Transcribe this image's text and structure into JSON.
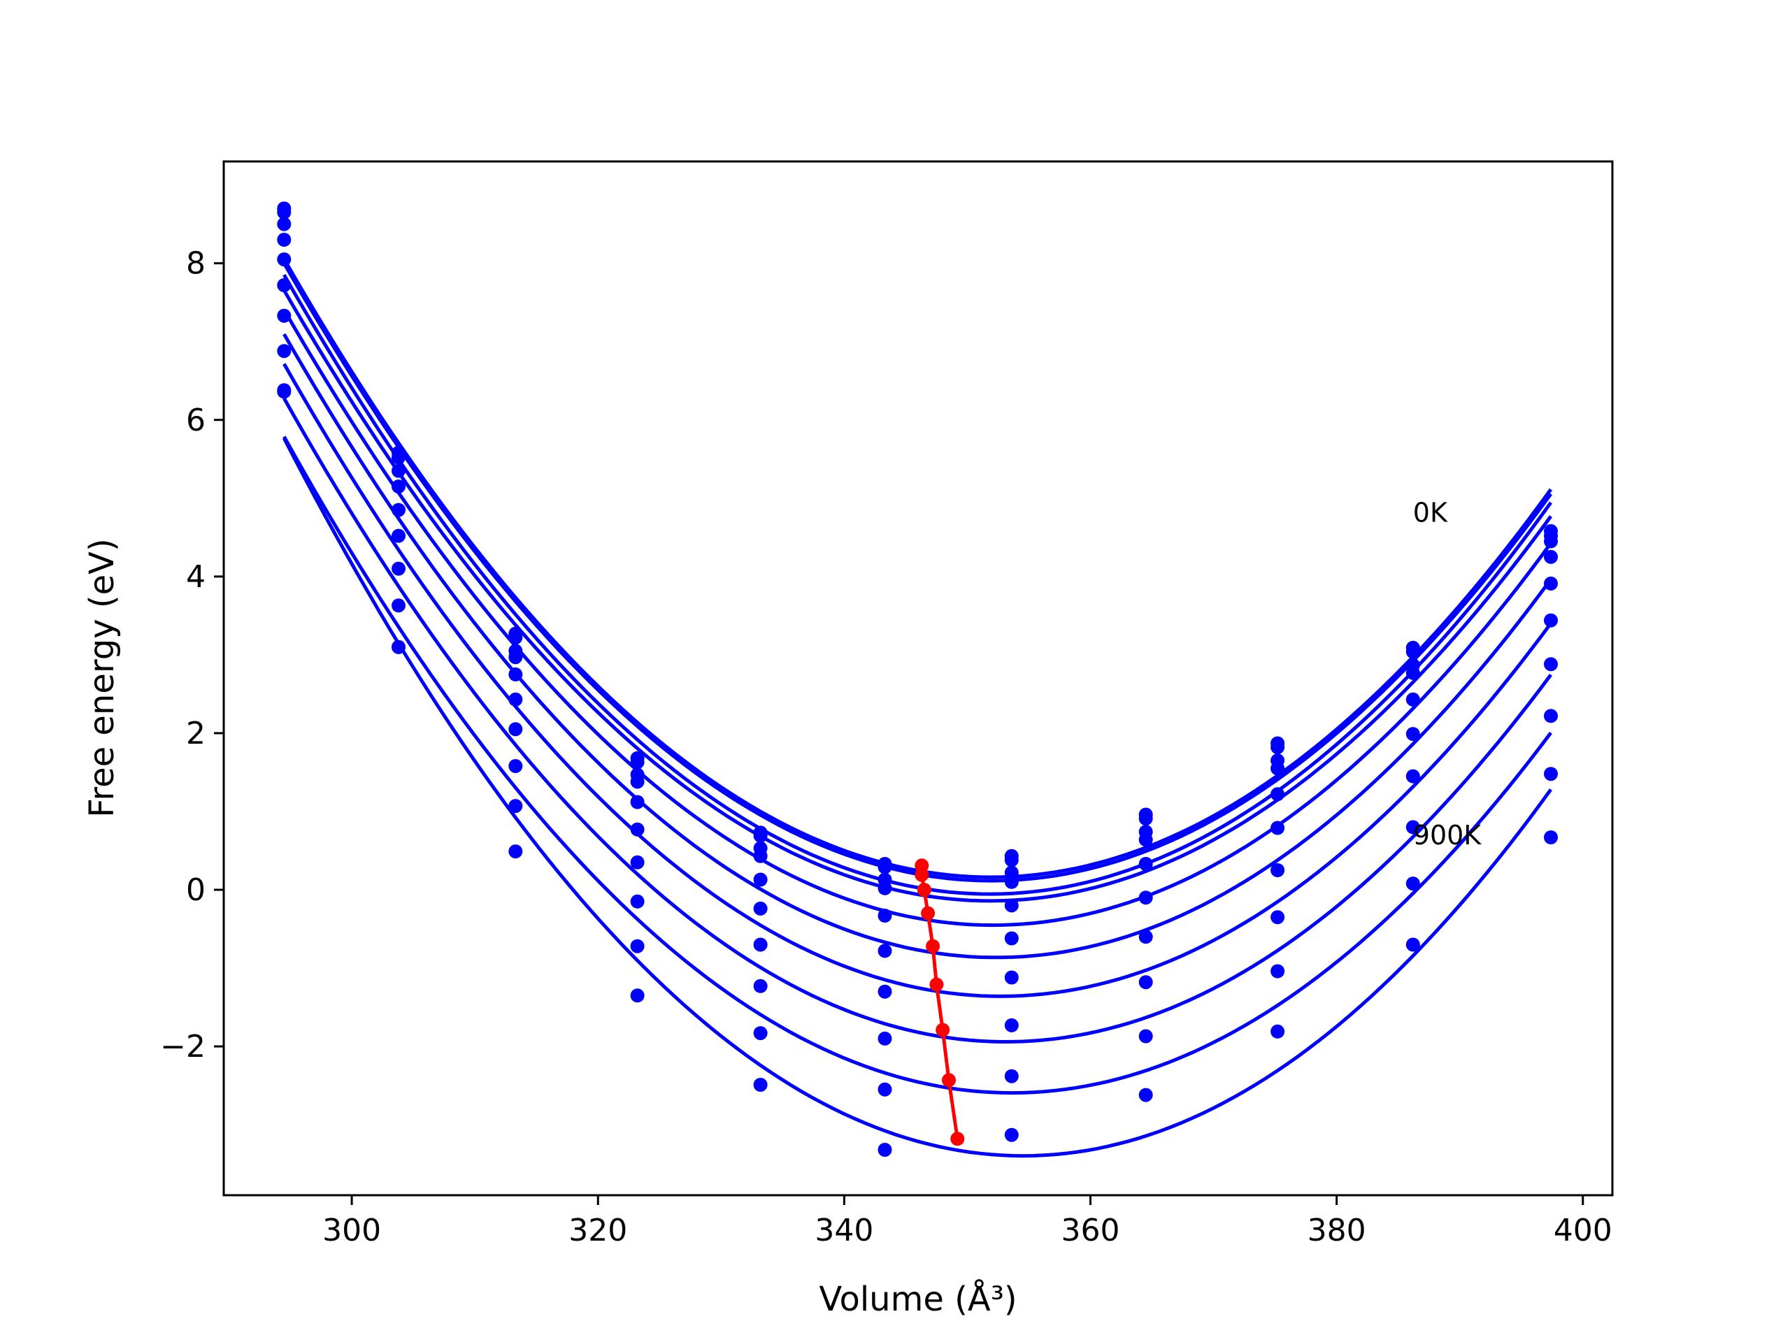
{
  "chart_data": {
    "type": "line",
    "xlabel": "Volume (Å³)",
    "ylabel": "Free energy (eV)",
    "xlim": [
      289.6,
      402.4
    ],
    "ylim": [
      -3.9,
      9.3
    ],
    "xticks": [
      300,
      320,
      340,
      360,
      380,
      400
    ],
    "yticks": [
      8,
      6,
      4,
      2,
      0,
      -2
    ],
    "ytick_labels": [
      "8",
      "6",
      "4",
      "2",
      "0",
      "−2"
    ],
    "grid": false,
    "colors": {
      "curves": "#0000ff",
      "minima": "#ff0000"
    },
    "x": [
      294.5,
      303.8,
      313.3,
      323.2,
      333.2,
      343.3,
      353.6,
      364.5,
      375.2,
      386.2,
      397.4
    ],
    "series": [
      {
        "values": [
          8.7,
          5.58,
          3.27,
          1.68,
          0.73,
          0.33,
          0.43,
          0.96,
          1.87,
          3.09,
          4.58
        ]
      },
      {
        "values": [
          8.65,
          5.52,
          3.22,
          1.63,
          0.69,
          0.29,
          0.38,
          0.91,
          1.82,
          3.04,
          4.52
        ]
      },
      {
        "values": [
          8.5,
          5.35,
          3.05,
          1.47,
          0.53,
          0.13,
          0.22,
          0.74,
          1.65,
          2.87,
          4.45
        ]
      },
      {
        "values": [
          8.3,
          5.15,
          2.97,
          1.38,
          0.43,
          0.02,
          0.1,
          0.64,
          1.55,
          2.77,
          4.25
        ]
      },
      {
        "values": [
          8.05,
          4.85,
          2.75,
          1.12,
          0.13,
          -0.33,
          -0.2,
          0.33,
          1.22,
          2.43,
          3.91
        ]
      },
      {
        "values": [
          7.72,
          4.52,
          2.43,
          0.77,
          -0.24,
          -0.78,
          -0.62,
          -0.1,
          0.79,
          1.99,
          3.44
        ]
      },
      {
        "values": [
          7.33,
          4.1,
          2.05,
          0.35,
          -0.7,
          -1.3,
          -1.12,
          -0.6,
          0.25,
          1.45,
          2.88
        ]
      },
      {
        "values": [
          6.88,
          3.63,
          1.58,
          -0.15,
          -1.23,
          -1.9,
          -1.73,
          -1.18,
          -0.35,
          0.8,
          2.22
        ]
      },
      {
        "values": [
          6.38,
          3.1,
          1.07,
          -0.72,
          -1.83,
          -2.55,
          -2.38,
          -1.87,
          -1.04,
          0.08,
          1.48
        ]
      },
      {
        "values": [
          6.36,
          3.1,
          0.49,
          -1.35,
          -2.49,
          -3.32,
          -3.13,
          -2.62,
          -1.81,
          -0.7,
          0.67
        ]
      }
    ],
    "minima": {
      "x": [
        346.3,
        346.3,
        346.5,
        346.8,
        347.2,
        347.5,
        348.0,
        348.5,
        349.2
      ],
      "y": [
        0.31,
        0.19,
        0.0,
        -0.3,
        -0.72,
        -1.21,
        -1.79,
        -2.43,
        -3.18
      ]
    },
    "annotations": [
      {
        "text": "0K",
        "x": 386.2,
        "y": 4.7
      },
      {
        "text": "900K",
        "x": 386.2,
        "y": 0.58
      }
    ]
  }
}
